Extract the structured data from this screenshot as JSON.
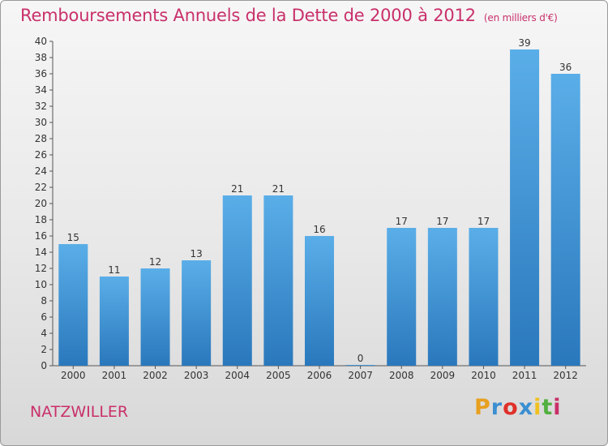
{
  "header": {
    "title": "Remboursements Annuels de la Dette de 2000 à 2012",
    "unit": "(en milliers d'€)"
  },
  "footer": {
    "city": "NATZWILLER",
    "logo": "Proxiti",
    "logo_colors": [
      "#e8a020",
      "#3a8fd0",
      "#e0302a",
      "#3a8fd0",
      "#f0c020",
      "#52b040",
      "#c9306a"
    ]
  },
  "colors": {
    "title": "#c9306a",
    "bar_top": "#5aaee8",
    "bar_bottom": "#2a78bc"
  },
  "chart_data": {
    "type": "bar",
    "categories": [
      "2000",
      "2001",
      "2002",
      "2003",
      "2004",
      "2005",
      "2006",
      "2007",
      "2008",
      "2009",
      "2010",
      "2011",
      "2012"
    ],
    "values": [
      15,
      11,
      12,
      13,
      21,
      21,
      16,
      0,
      17,
      17,
      17,
      39,
      36
    ],
    "title": "Remboursements Annuels de la Dette de 2000 à 2012",
    "xlabel": "",
    "ylabel": "",
    "ylim": [
      0,
      40
    ],
    "yticks": [
      0,
      2,
      4,
      6,
      8,
      10,
      12,
      14,
      16,
      18,
      20,
      22,
      24,
      26,
      28,
      30,
      32,
      34,
      36,
      38,
      40
    ],
    "grid": false,
    "legend": "none"
  }
}
